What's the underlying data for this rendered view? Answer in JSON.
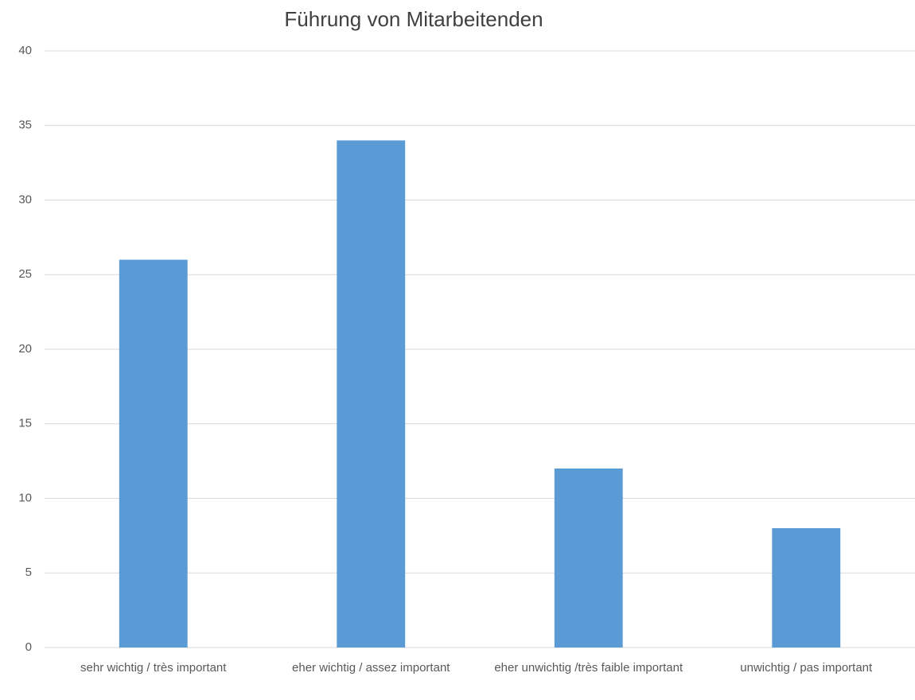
{
  "chart_data": {
    "type": "bar",
    "title": "Führung von Mitarbeitenden",
    "categories": [
      "sehr wichtig / très important",
      "eher wichtig / assez important",
      "eher unwichtig /très faible important",
      "unwichtig / pas important"
    ],
    "values": [
      26,
      34,
      12,
      8
    ],
    "color": "#5b9bd5",
    "ylim": [
      0,
      40
    ],
    "yticks": [
      0,
      5,
      10,
      15,
      20,
      25,
      30,
      35,
      40
    ],
    "grid": true
  }
}
